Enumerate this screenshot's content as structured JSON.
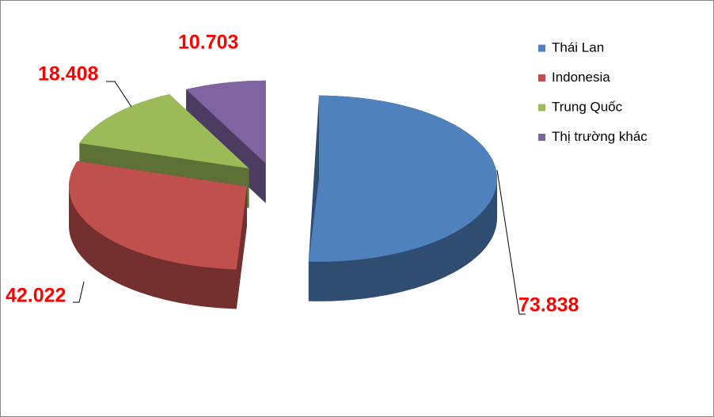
{
  "chart_data": {
    "type": "pie3d",
    "categories": [
      "Thái Lan",
      "Indonesia",
      "Trung Quốc",
      "Thị trường khác"
    ],
    "values": [
      73.838,
      42.022,
      18.408,
      10.703
    ],
    "colors": [
      "#4f81bd",
      "#c0504d",
      "#9bbb59",
      "#8064a2"
    ],
    "legend": "right"
  }
}
